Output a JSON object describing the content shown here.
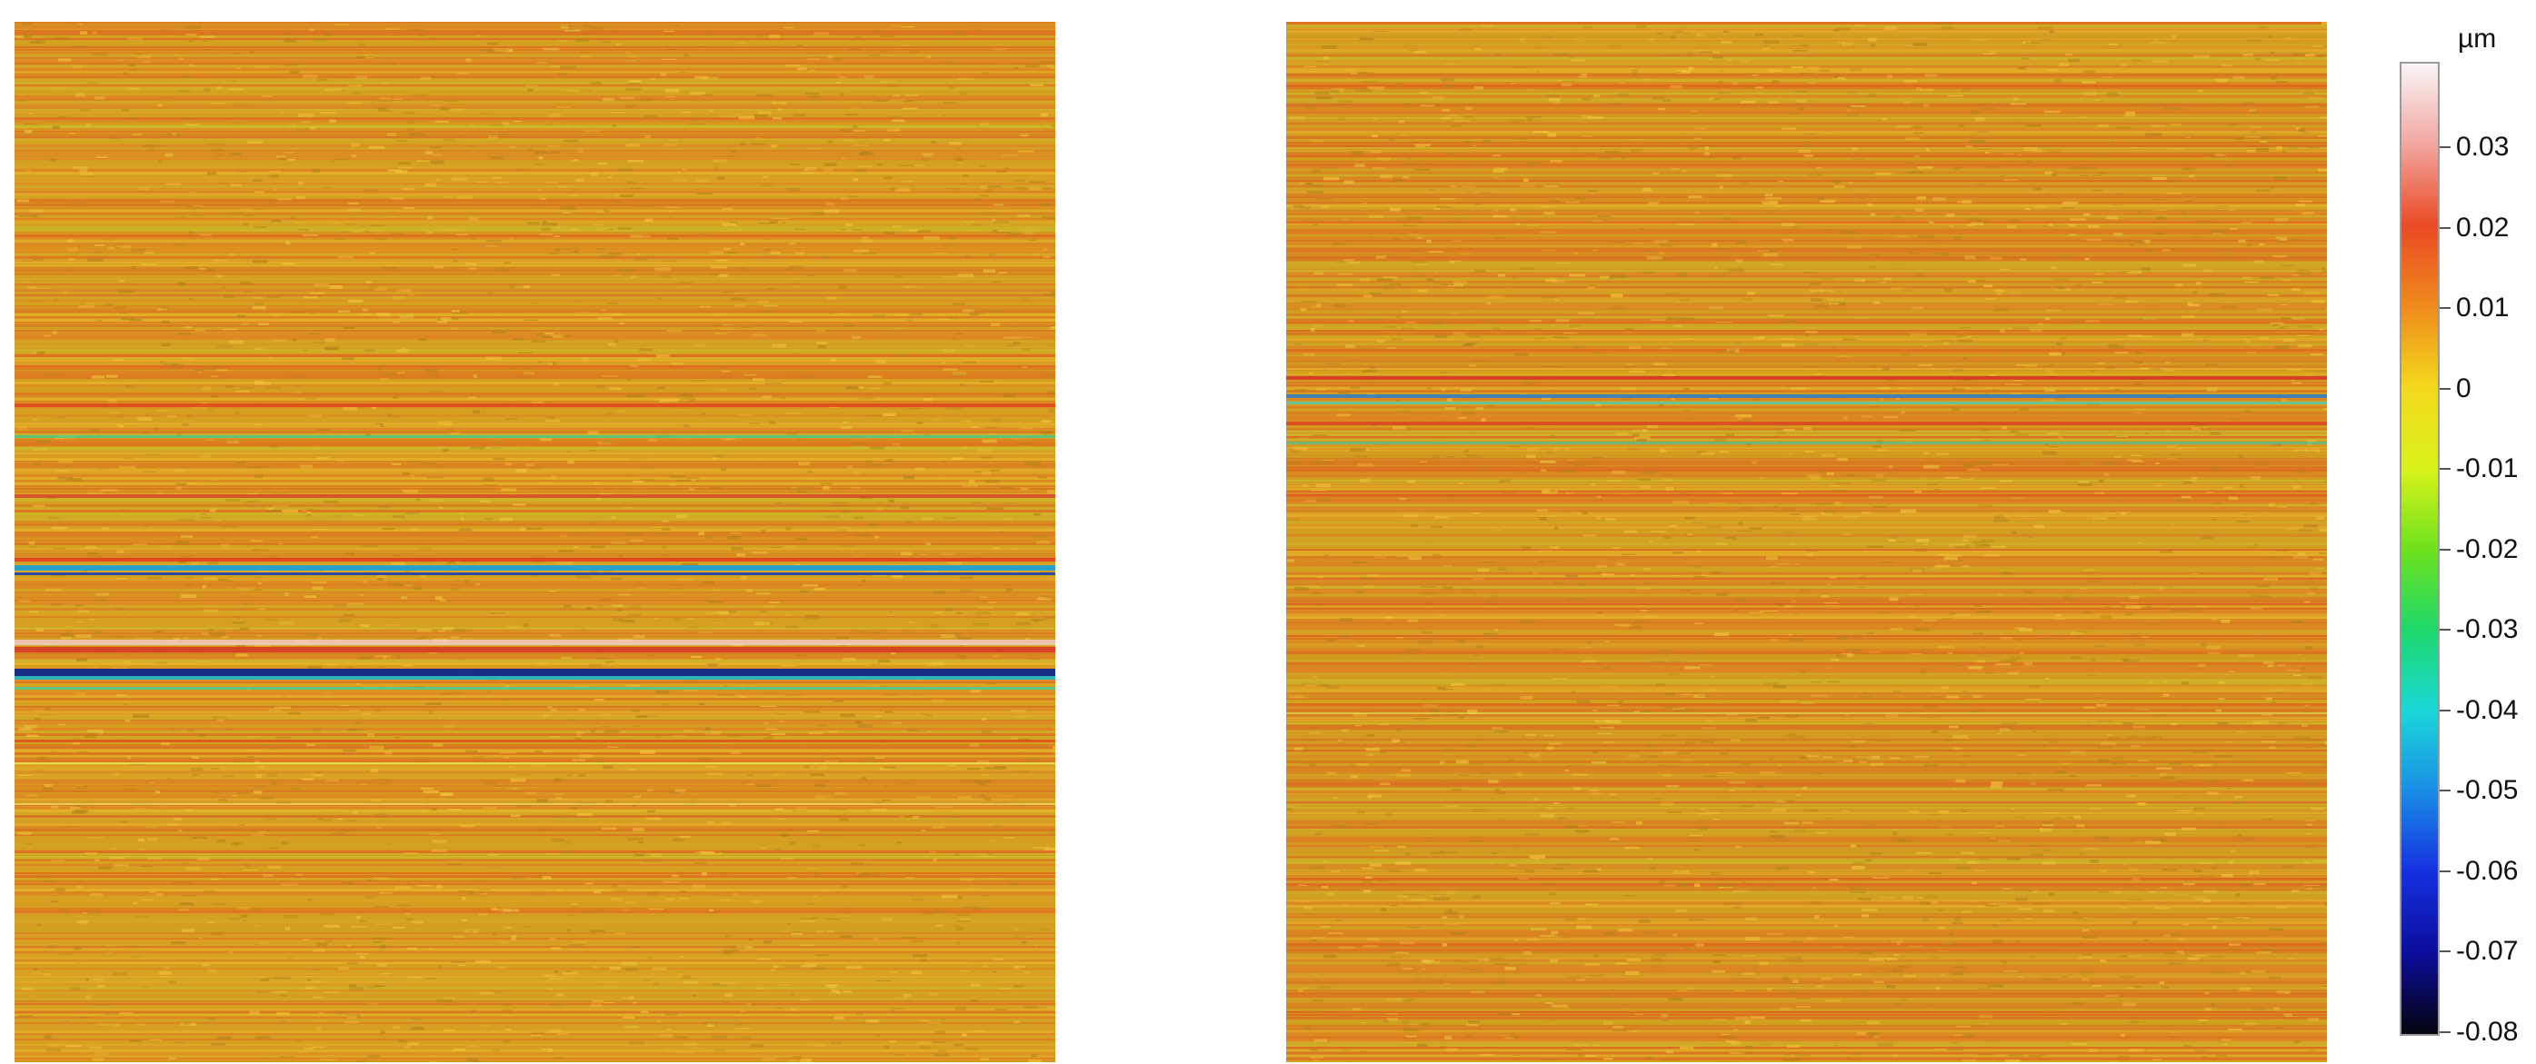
{
  "colorbar": {
    "unit": "µm",
    "ticks": [
      "0.03",
      "0.02",
      "0.01",
      "0",
      "-0.01",
      "-0.02",
      "-0.03",
      "-0.04",
      "-0.05",
      "-0.06",
      "-0.07",
      "-0.08"
    ],
    "colors": [
      "#f8f5f6",
      "#f2a6a0",
      "#ea4a23",
      "#ee8a1c",
      "#f3d81d",
      "#d9f21a",
      "#6fe21c",
      "#1ed96a",
      "#1ad7d8",
      "#1a8de6",
      "#1530e0",
      "#0c0d9c",
      "#05050f"
    ]
  },
  "panels": [
    {
      "name": "left-height-map",
      "base_color": "#d89a22",
      "stripe_color": "#e0611e"
    },
    {
      "name": "right-height-map",
      "base_color": "#d69322",
      "stripe_color": "#df5c1e"
    }
  ]
}
